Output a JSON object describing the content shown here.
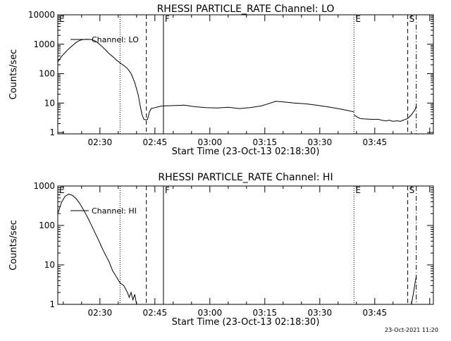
{
  "footer": {
    "stamp": "23-Oct-2021 11:20"
  },
  "chart_data": [
    {
      "type": "line",
      "title": "RHESSI PARTICLE_RATE Channel: LO",
      "xlabel": "Start Time (23-Oct-13 02:18:30)",
      "ylabel": "Counts/sec",
      "yscale": "log",
      "xlim": [
        "02:18:30",
        "04:01:00"
      ],
      "ylim": [
        0.9,
        10000
      ],
      "x_ticks": [
        "02:30",
        "02:45",
        "03:00",
        "03:15",
        "03:30",
        "03:45"
      ],
      "y_ticks": [
        "1",
        "10",
        "100",
        "1000",
        "10000"
      ],
      "legend": {
        "label": "Channel: LO",
        "placement": "top-left"
      },
      "markers": [
        {
          "time": "02:18:30",
          "label": "E",
          "style": "dotted"
        },
        {
          "time": "02:35:30",
          "label": "",
          "style": "dotted"
        },
        {
          "time": "02:42:40",
          "label": "",
          "style": "dashed"
        },
        {
          "time": "02:47:20",
          "label": "F",
          "style": "solid"
        },
        {
          "time": "03:39:20",
          "label": "E",
          "style": "dotted"
        },
        {
          "time": "03:54:00",
          "label": "S",
          "style": "dashed"
        },
        {
          "time": "03:56:20",
          "label": "",
          "style": "dashdot"
        }
      ],
      "series": [
        {
          "x": [
            "02:18:30",
            "02:19:30",
            "02:20:30",
            "02:21:30",
            "02:22:30",
            "02:23:30",
            "02:24:30",
            "02:25:30",
            "02:26:30",
            "02:27:30",
            "02:28:30",
            "02:29:30",
            "02:30:30",
            "02:31:30",
            "02:32:30",
            "02:33:30",
            "02:34:30",
            "02:35:30",
            "02:36:30",
            "02:37:30",
            "02:38:30",
            "02:39:30",
            "02:40:30",
            "02:41:00",
            "02:41:30",
            "02:42:00",
            "02:42:30",
            "02:43:00",
            "02:43:30",
            "02:44:00",
            "02:45:00",
            "02:46:00",
            "02:47:00"
          ],
          "values": [
            250,
            380,
            520,
            700,
            900,
            1150,
            1350,
            1450,
            1480,
            1450,
            1330,
            1100,
            850,
            650,
            480,
            380,
            290,
            230,
            190,
            150,
            100,
            50,
            18,
            8,
            4,
            2.8,
            2.7,
            2.8,
            5,
            6.5,
            7,
            7.5,
            8
          ]
        },
        {
          "x": [
            "02:47:00",
            "02:50:00",
            "02:53:00",
            "02:56:00",
            "02:59:00",
            "03:02:00",
            "03:05:00",
            "03:08:00",
            "03:11:00",
            "03:14:00",
            "03:16:00",
            "03:18:00",
            "03:20:00",
            "03:23:00",
            "03:26:00",
            "03:29:00",
            "03:32:00",
            "03:35:00",
            "03:38:00",
            "03:39:20"
          ],
          "values": [
            8,
            8.2,
            8.5,
            7.5,
            7,
            6.8,
            7.2,
            6.5,
            7,
            8,
            9.5,
            11.5,
            11,
            10,
            9.5,
            8.5,
            7.5,
            6.5,
            5.5,
            5
          ]
        },
        {
          "x": [
            "03:39:20",
            "03:40:00",
            "03:41:00",
            "03:42:00",
            "03:44:00",
            "03:46:00",
            "03:47:00",
            "03:48:00",
            "03:49:00",
            "03:50:00",
            "03:51:00",
            "03:52:00",
            "03:53:00",
            "03:54:00",
            "03:55:00",
            "03:56:00",
            "03:56:20"
          ],
          "values": [
            4,
            3.5,
            3,
            2.9,
            2.8,
            2.8,
            2.6,
            2.5,
            2.6,
            2.4,
            2.5,
            2.4,
            2.7,
            3,
            4,
            6,
            8
          ]
        }
      ]
    },
    {
      "type": "line",
      "title": "RHESSI PARTICLE_RATE Channel: HI",
      "xlabel": "Start Time (23-Oct-13 02:18:30)",
      "ylabel": "Counts/sec",
      "yscale": "log",
      "xlim": [
        "02:18:30",
        "04:01:00"
      ],
      "ylim": [
        1,
        1000
      ],
      "x_ticks": [
        "02:30",
        "02:45",
        "03:00",
        "03:15",
        "03:30",
        "03:45"
      ],
      "y_ticks": [
        "1",
        "10",
        "100",
        "1000"
      ],
      "legend": {
        "label": "Channel: HI",
        "placement": "top-left"
      },
      "markers": [
        {
          "time": "02:18:30",
          "label": "E",
          "style": "dotted"
        },
        {
          "time": "02:35:30",
          "label": "",
          "style": "dotted"
        },
        {
          "time": "02:42:40",
          "label": "",
          "style": "dashed"
        },
        {
          "time": "02:47:20",
          "label": "F",
          "style": "solid"
        },
        {
          "time": "03:39:20",
          "label": "E",
          "style": "dotted"
        },
        {
          "time": "03:54:00",
          "label": "S",
          "style": "dashed"
        },
        {
          "time": "03:56:20",
          "label": "",
          "style": "dashdot"
        }
      ],
      "series": [
        {
          "x": [
            "02:18:30",
            "02:19:30",
            "02:20:30",
            "02:21:30",
            "02:22:30",
            "02:23:30",
            "02:24:30",
            "02:25:30",
            "02:26:30",
            "02:27:30",
            "02:28:30",
            "02:29:30",
            "02:30:30",
            "02:31:30",
            "02:32:30",
            "02:33:30",
            "02:34:30",
            "02:35:30",
            "02:36:30",
            "02:37:30",
            "02:38:00",
            "02:38:30",
            "02:39:00",
            "02:39:30",
            "02:40:00"
          ],
          "values": [
            200,
            380,
            550,
            620,
            580,
            480,
            360,
            250,
            170,
            110,
            70,
            45,
            28,
            18,
            12,
            7,
            5,
            3.5,
            3,
            2,
            1.5,
            2,
            1.3,
            1.8,
            1
          ]
        },
        {
          "x": [
            "03:55:00",
            "03:55:30",
            "03:56:00",
            "03:56:20"
          ],
          "values": [
            1,
            1.8,
            3.5,
            5
          ]
        }
      ]
    }
  ]
}
